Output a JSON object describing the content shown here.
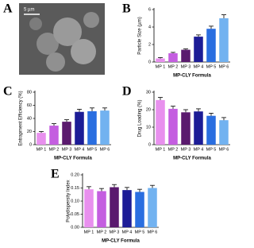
{
  "image_panel": {
    "panel_label": "A",
    "scale_bar": "5 µm"
  },
  "chart_data": [
    {
      "type": "bar",
      "panel_label": "B",
      "y_label": "Particle Size (µm)",
      "x_label": "MP-CLY Formula",
      "categories": [
        "MP 1",
        "MP 2",
        "MP 3",
        "MP 4",
        "MP 5",
        "MP 6"
      ],
      "values": [
        0.4,
        1.0,
        1.4,
        2.9,
        3.8,
        5.0
      ],
      "errors": [
        0.1,
        0.1,
        0.1,
        0.2,
        0.3,
        0.4
      ],
      "colors": [
        "#e890ee",
        "#c45ee0",
        "#5a1a6e",
        "#1c1c96",
        "#2a6ee0",
        "#72b2f0"
      ],
      "ylim": [
        0,
        6
      ],
      "yticks": [
        0,
        2,
        4,
        6
      ]
    },
    {
      "type": "bar",
      "panel_label": "C",
      "y_label": "Entrapment Efficiency (%)",
      "x_label": "MP-CLY Formula",
      "categories": [
        "MP 1",
        "MP 2",
        "MP 3",
        "MP 4",
        "MP 5",
        "MP 6"
      ],
      "values": [
        18,
        29,
        35,
        50,
        51,
        52
      ],
      "errors": [
        2,
        3,
        3,
        4,
        5,
        4
      ],
      "colors": [
        "#e890ee",
        "#c45ee0",
        "#5a1a6e",
        "#1c1c96",
        "#2a6ee0",
        "#72b2f0"
      ],
      "ylim": [
        0,
        80
      ],
      "yticks": [
        0,
        20,
        40,
        60,
        80
      ]
    },
    {
      "type": "bar",
      "panel_label": "D",
      "y_label": "Drug Loading (%)",
      "x_label": "MP-CLY Formula",
      "categories": [
        "MP 1",
        "MP 2",
        "MP 3",
        "MP 4",
        "MP 5",
        "MP 6"
      ],
      "values": [
        25.5,
        20.5,
        18.5,
        19,
        16.5,
        14
      ],
      "errors": [
        1.5,
        1.5,
        1.5,
        1.5,
        1.5,
        1.5
      ],
      "colors": [
        "#e890ee",
        "#c45ee0",
        "#5a1a6e",
        "#1c1c96",
        "#2a6ee0",
        "#72b2f0"
      ],
      "ylim": [
        0,
        30
      ],
      "yticks": [
        0,
        10,
        20,
        30
      ]
    },
    {
      "type": "bar",
      "panel_label": "E",
      "y_label": "Polydispersity Index",
      "x_label": "MP-CLY Formula",
      "categories": [
        "MP 1",
        "MP 2",
        "MP 3",
        "MP 4",
        "MP 5",
        "MP 6"
      ],
      "values": [
        0.145,
        0.138,
        0.153,
        0.142,
        0.135,
        0.15
      ],
      "errors": [
        0.01,
        0.01,
        0.01,
        0.01,
        0.01,
        0.01
      ],
      "colors": [
        "#e890ee",
        "#c45ee0",
        "#5a1a6e",
        "#1c1c96",
        "#2a6ee0",
        "#72b2f0"
      ],
      "ylim": [
        0,
        0.2
      ],
      "yticks": [
        {
          "value": 0,
          "label": "0.00"
        },
        {
          "value": 0.05,
          "label": "0.05"
        },
        {
          "value": 0.1,
          "label": "0.10"
        },
        {
          "value": 0.15,
          "label": "0.15"
        },
        {
          "value": 0.2,
          "label": "0.20"
        }
      ]
    }
  ]
}
